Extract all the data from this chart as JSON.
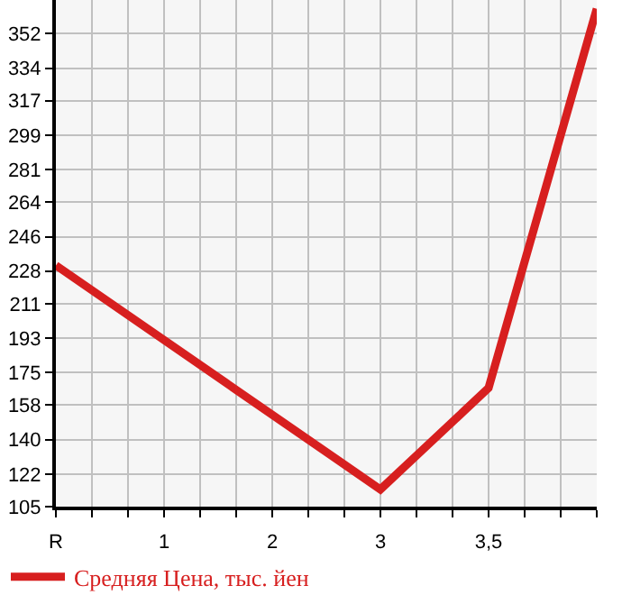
{
  "chart_data": {
    "type": "line",
    "categories": [
      "R",
      "1",
      "2",
      "3",
      "3,5",
      null
    ],
    "series": [
      {
        "name": "Средняя Цена, тыс. йен",
        "color": "#d71f1f",
        "values": [
          231,
          null,
          null,
          114,
          167,
          365
        ]
      }
    ],
    "ylim": [
      105,
      369.6
    ],
    "yticks": [
      105,
      122,
      140,
      158,
      175,
      193,
      211,
      228,
      246,
      264,
      281,
      299,
      317,
      334,
      352
    ],
    "grid": true,
    "legend": "bottom",
    "marker": "none",
    "line_style": "solid"
  }
}
